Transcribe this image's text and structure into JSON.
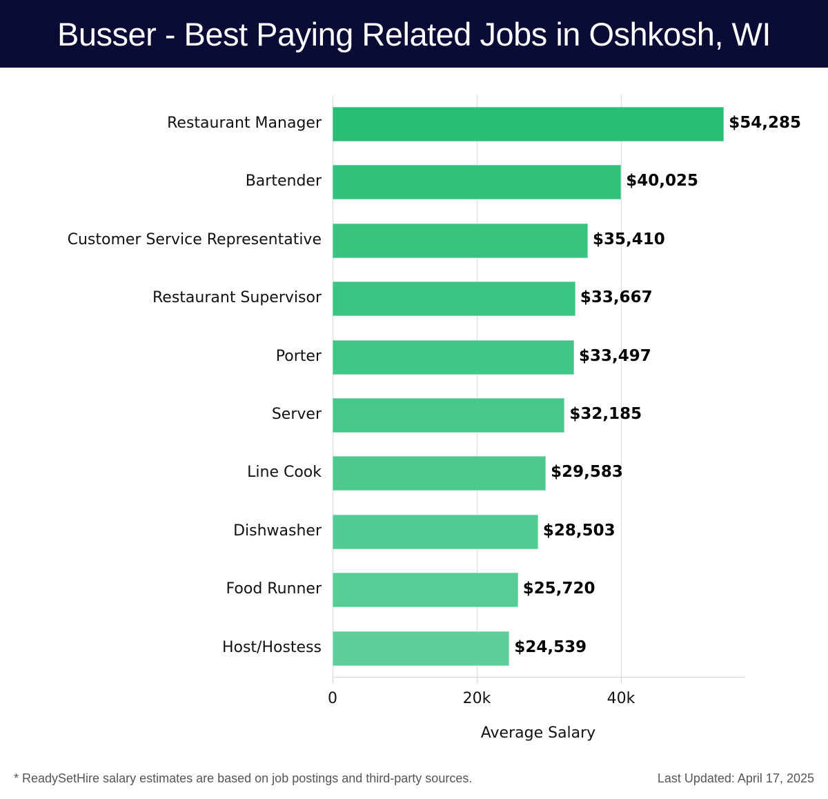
{
  "header": {
    "title": "Busser - Best Paying Related Jobs in Oshkosh, WI"
  },
  "footer": {
    "note": "* ReadySetHire salary estimates are based on job postings and third-party sources.",
    "updated": "Last Updated: April 17, 2025"
  },
  "colors": {
    "header_bg": "#0b0c35",
    "bar_top": "#2bbf76",
    "bar_bottom": "#5ccf9a"
  },
  "chart_data": {
    "type": "bar",
    "orientation": "horizontal",
    "title": "Busser - Best Paying Related Jobs in Oshkosh, WI",
    "xlabel": "Average Salary",
    "ylabel": "",
    "xlim": [
      0,
      57100
    ],
    "xticks": [
      0,
      20000,
      40000
    ],
    "xtick_labels": [
      "0",
      "20k",
      "40k"
    ],
    "grid": "vertical",
    "legend": "none",
    "categories": [
      "Restaurant Manager",
      "Bartender",
      "Customer Service Representative",
      "Restaurant Supervisor",
      "Porter",
      "Server",
      "Line Cook",
      "Dishwasher",
      "Food Runner",
      "Host/Hostess"
    ],
    "values": [
      54285,
      40025,
      35410,
      33667,
      33497,
      32185,
      29583,
      28503,
      25720,
      24539
    ],
    "value_labels": [
      "$54,285",
      "$40,025",
      "$35,410",
      "$33,667",
      "$33,497",
      "$32,185",
      "$29,583",
      "$28,503",
      "$25,720",
      "$24,539"
    ]
  }
}
